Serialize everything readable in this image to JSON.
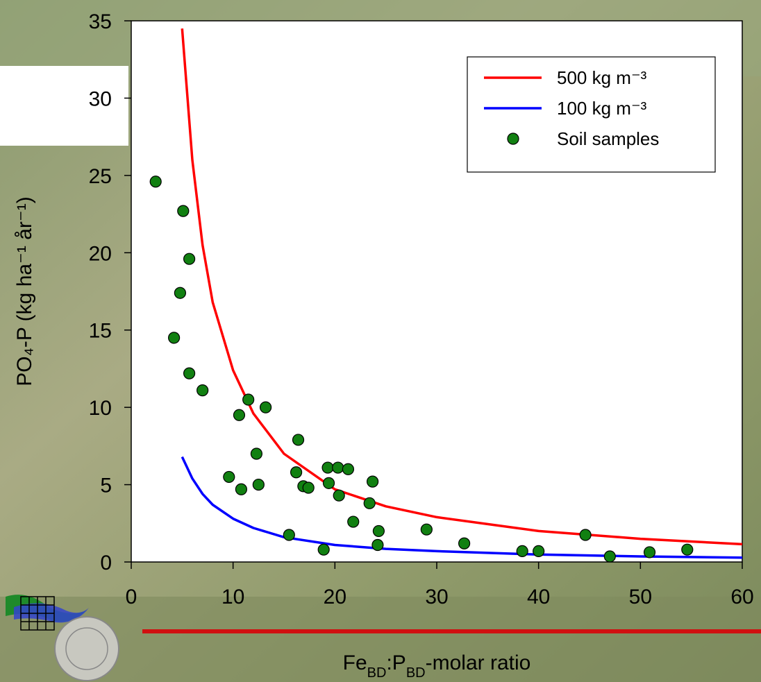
{
  "chart_data": {
    "type": "scatter",
    "x_label": [
      "Fe",
      "BD",
      ":P",
      "BD",
      "-molar ratio"
    ],
    "y_label": "PO₄-P (kg ha⁻¹ år⁻¹)",
    "xlim": [
      0,
      60
    ],
    "xticks": [
      0,
      10,
      20,
      30,
      40,
      50,
      60
    ],
    "ylim": [
      0,
      35
    ],
    "yticks": [
      0,
      5,
      10,
      15,
      20,
      25,
      30,
      35
    ],
    "legend": "upper right",
    "series": [
      {
        "name": "500 kg m⁻³",
        "color": "#ff0000",
        "style": "line",
        "x": [
          5,
          6,
          7,
          8,
          10,
          12,
          15,
          20,
          25,
          30,
          40,
          50,
          60
        ],
        "y": [
          34.5,
          26,
          20.5,
          16.8,
          12.4,
          9.6,
          7.0,
          4.7,
          3.6,
          2.9,
          2.0,
          1.5,
          1.15
        ]
      },
      {
        "name": "100 kg m⁻³",
        "color": "#0000ff",
        "style": "line",
        "x": [
          5,
          6,
          7,
          8,
          10,
          12,
          15,
          20,
          25,
          30,
          40,
          50,
          60
        ],
        "y": [
          6.8,
          5.4,
          4.4,
          3.7,
          2.8,
          2.2,
          1.6,
          1.1,
          0.85,
          0.7,
          0.48,
          0.36,
          0.28
        ]
      },
      {
        "name": "Soil samples",
        "color": "#118011",
        "style": "marker",
        "x": [
          2.4,
          5.1,
          5.7,
          4.8,
          4.2,
          5.7,
          7.0,
          11.5,
          10.6,
          13.2,
          16.4,
          12.3,
          9.6,
          10.8,
          12.5,
          16.2,
          16.9,
          17.4,
          19.3,
          20.3,
          21.3,
          19.4,
          20.4,
          23.7,
          23.4,
          21.8,
          24.3,
          24.2,
          15.5,
          18.9,
          29.0,
          32.7,
          38.4,
          40.0,
          44.6,
          47.0,
          50.9,
          54.6
        ],
        "y": [
          24.6,
          22.7,
          19.6,
          17.4,
          14.5,
          12.2,
          11.1,
          10.5,
          9.5,
          10.0,
          7.9,
          7.0,
          5.5,
          4.7,
          5.0,
          5.8,
          4.9,
          4.8,
          6.1,
          6.1,
          6.0,
          5.1,
          4.3,
          5.2,
          3.8,
          2.6,
          2.0,
          1.1,
          1.75,
          0.8,
          2.1,
          1.2,
          0.7,
          0.7,
          1.75,
          0.36,
          0.63,
          0.8
        ]
      }
    ]
  }
}
